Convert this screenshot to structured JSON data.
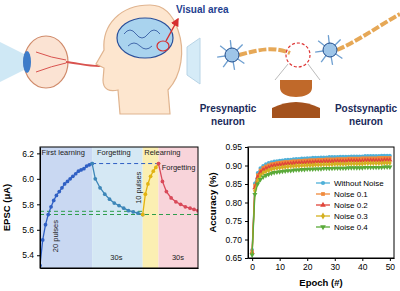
{
  "illustration": {
    "labels": [
      "Visual area",
      "Presynaptic neuron",
      "Postsynaptic neuron"
    ]
  },
  "chart_data": [
    {
      "type": "line",
      "y_label": "EPSC (μA)",
      "xlim": [
        0,
        100
      ],
      "ylim": [
        5.3,
        6.25
      ],
      "yticks": [
        5.4,
        5.6,
        5.8,
        {
          "value": 6,
          "label": "6.0"
        },
        6.2
      ],
      "tick_labels": "y",
      "phases": [
        {
          "start": 0,
          "end": 33,
          "color": "#c9d8f2"
        },
        {
          "start": 33,
          "end": 65,
          "color": "#d5e8f4"
        },
        {
          "start": 65,
          "end": 75,
          "color": "#fbefb2"
        },
        {
          "start": 75,
          "end": 100,
          "color": "#f8d4da"
        }
      ],
      "series": [
        {
          "color": "#2f5fc4",
          "marker": "circle",
          "x": [
            0,
            1.7,
            3.5,
            5.2,
            7,
            8.7,
            10.4,
            12.2,
            13.9,
            15.6,
            17.4,
            19.1,
            20.8,
            22.6,
            24.3,
            26,
            27.8,
            29.5,
            31.2,
            33
          ],
          "values": [
            5.32,
            5.52,
            5.64,
            5.72,
            5.78,
            5.83,
            5.87,
            5.9,
            5.93,
            5.96,
            5.98,
            6.0,
            6.02,
            6.04,
            6.06,
            6.07,
            6.08,
            6.1,
            6.11,
            6.12
          ]
        },
        {
          "color": "#3d86b8",
          "marker": "circle",
          "x": [
            33,
            35,
            38,
            41,
            44,
            47,
            50,
            53,
            56,
            59,
            62,
            65
          ],
          "values": [
            6.12,
            6.0,
            5.93,
            5.88,
            5.84,
            5.81,
            5.79,
            5.77,
            5.75,
            5.74,
            5.73,
            5.72
          ]
        },
        {
          "color": "#e2b311",
          "marker": "circle",
          "x": [
            65,
            66.7,
            68.3,
            70,
            71.7,
            73.3,
            75
          ],
          "values": [
            5.72,
            5.88,
            5.96,
            6.02,
            6.06,
            6.09,
            6.12
          ]
        },
        {
          "color": "#d94a5a",
          "marker": "circle",
          "x": [
            75,
            77.5,
            80,
            83,
            86,
            89,
            92,
            95,
            97.5,
            100
          ],
          "values": [
            6.12,
            5.98,
            5.9,
            5.85,
            5.82,
            5.8,
            5.78,
            5.77,
            5.76,
            5.75
          ]
        }
      ],
      "ref_lines": [
        {
          "value": 6.12,
          "start": 33,
          "end": 75,
          "color": "#2f5fc4",
          "line_style": "dashed"
        },
        {
          "value": 5.745,
          "start": 0,
          "end": 65,
          "color": "#2e9d4c",
          "line_style": "dashed"
        },
        {
          "value": 5.72,
          "start": 0,
          "end": 100,
          "color": "#2e9d4c",
          "line_style": "dashed"
        }
      ],
      "annotations": [
        {
          "text": "First learning",
          "x": 1,
          "y": 6.19
        },
        {
          "text": "Forgetting",
          "x": 36,
          "y": 6.19
        },
        {
          "text": "Relearning",
          "x": 66,
          "y": 6.19
        },
        {
          "text": "Forgetting",
          "x": 77,
          "y": 6.07
        },
        {
          "text": "30s",
          "x": 44.5,
          "y": 5.36
        },
        {
          "text": "30s",
          "x": 83.5,
          "y": 5.36
        }
      ],
      "pulse_labels": [
        {
          "text": "20 pulses",
          "x": 10,
          "y": 5.55
        },
        {
          "text": "10 pulses",
          "x": 62,
          "y": 5.93
        }
      ]
    },
    {
      "type": "line",
      "x_label": "Epoch (#)",
      "y_label": "Accuracy (%)",
      "xlim": [
        -1.5,
        51.5
      ],
      "ylim": [
        0.65,
        0.95
      ],
      "xticks": [
        0,
        10,
        20,
        30,
        40,
        50
      ],
      "yticks": [
        0.65,
        {
          "value": 0.7,
          "label": "0.70"
        },
        0.75,
        {
          "value": 0.8,
          "label": "0.80"
        },
        0.85,
        {
          "value": 0.9,
          "label": "0.90"
        },
        0.95
      ],
      "legend": "center right",
      "x": [
        0,
        1,
        2,
        3,
        4,
        5,
        6,
        7,
        8,
        9,
        10,
        11,
        12,
        13,
        14,
        15,
        16,
        17,
        18,
        19,
        20,
        21,
        22,
        23,
        24,
        25,
        26,
        27,
        28,
        29,
        30,
        31,
        32,
        33,
        34,
        35,
        36,
        37,
        38,
        39,
        40,
        41,
        42,
        43,
        44,
        45,
        46,
        47,
        48,
        49,
        50
      ],
      "series": [
        {
          "name": "Without Noise",
          "color": "#4fb0d8",
          "marker": "circle",
          "values": [
            0.672,
            0.852,
            0.88,
            0.893,
            0.899,
            0.904,
            0.907,
            0.909,
            0.911,
            0.912,
            0.913,
            0.914,
            0.915,
            0.916,
            0.916,
            0.917,
            0.918,
            0.918,
            0.919,
            0.919,
            0.92,
            0.92,
            0.921,
            0.921,
            0.921,
            0.922,
            0.922,
            0.922,
            0.923,
            0.923,
            0.923,
            0.923,
            0.924,
            0.924,
            0.924,
            0.924,
            0.925,
            0.925,
            0.925,
            0.925,
            0.925,
            0.926,
            0.926,
            0.926,
            0.926,
            0.926,
            0.926,
            0.927,
            0.927,
            0.927,
            0.927
          ]
        },
        {
          "name": "Noise 0.1",
          "color": "#f08a3c",
          "marker": "square",
          "values": [
            0.668,
            0.846,
            0.874,
            0.887,
            0.894,
            0.898,
            0.901,
            0.904,
            0.905,
            0.907,
            0.908,
            0.909,
            0.91,
            0.91,
            0.911,
            0.912,
            0.912,
            0.913,
            0.913,
            0.914,
            0.914,
            0.915,
            0.915,
            0.915,
            0.916,
            0.916,
            0.916,
            0.917,
            0.917,
            0.917,
            0.917,
            0.918,
            0.918,
            0.918,
            0.918,
            0.919,
            0.919,
            0.919,
            0.919,
            0.919,
            0.92,
            0.92,
            0.92,
            0.92,
            0.92,
            0.92,
            0.921,
            0.921,
            0.921,
            0.921,
            0.921
          ]
        },
        {
          "name": "Noise 0.2",
          "color": "#e0453a",
          "marker": "triangle",
          "values": [
            0.665,
            0.84,
            0.868,
            0.881,
            0.888,
            0.892,
            0.895,
            0.898,
            0.9,
            0.901,
            0.902,
            0.903,
            0.904,
            0.905,
            0.905,
            0.906,
            0.907,
            0.907,
            0.908,
            0.908,
            0.909,
            0.909,
            0.909,
            0.91,
            0.91,
            0.91,
            0.911,
            0.911,
            0.911,
            0.911,
            0.912,
            0.912,
            0.912,
            0.912,
            0.912,
            0.913,
            0.913,
            0.913,
            0.913,
            0.913,
            0.913,
            0.914,
            0.914,
            0.914,
            0.914,
            0.914,
            0.914,
            0.914,
            0.915,
            0.915,
            0.915
          ]
        },
        {
          "name": "Noise 0.3",
          "color": "#d4b020",
          "marker": "diamond",
          "values": [
            0.662,
            0.832,
            0.86,
            0.873,
            0.88,
            0.884,
            0.887,
            0.89,
            0.892,
            0.893,
            0.894,
            0.895,
            0.896,
            0.897,
            0.898,
            0.898,
            0.899,
            0.899,
            0.9,
            0.9,
            0.901,
            0.901,
            0.901,
            0.902,
            0.902,
            0.902,
            0.903,
            0.903,
            0.903,
            0.903,
            0.904,
            0.904,
            0.904,
            0.904,
            0.904,
            0.905,
            0.905,
            0.905,
            0.905,
            0.905,
            0.905,
            0.906,
            0.906,
            0.906,
            0.906,
            0.906,
            0.906,
            0.906,
            0.907,
            0.907,
            0.907
          ]
        },
        {
          "name": "Noise 0.4",
          "color": "#5aaa3a",
          "marker": "triangle-down",
          "values": [
            0.658,
            0.822,
            0.85,
            0.862,
            0.869,
            0.873,
            0.876,
            0.879,
            0.881,
            0.882,
            0.883,
            0.884,
            0.885,
            0.886,
            0.886,
            0.887,
            0.888,
            0.888,
            0.889,
            0.889,
            0.89,
            0.89,
            0.89,
            0.891,
            0.891,
            0.891,
            0.892,
            0.892,
            0.892,
            0.892,
            0.893,
            0.893,
            0.893,
            0.893,
            0.893,
            0.894,
            0.894,
            0.894,
            0.894,
            0.894,
            0.894,
            0.895,
            0.895,
            0.895,
            0.895,
            0.895,
            0.895,
            0.895,
            0.896,
            0.896,
            0.896
          ]
        }
      ]
    }
  ]
}
